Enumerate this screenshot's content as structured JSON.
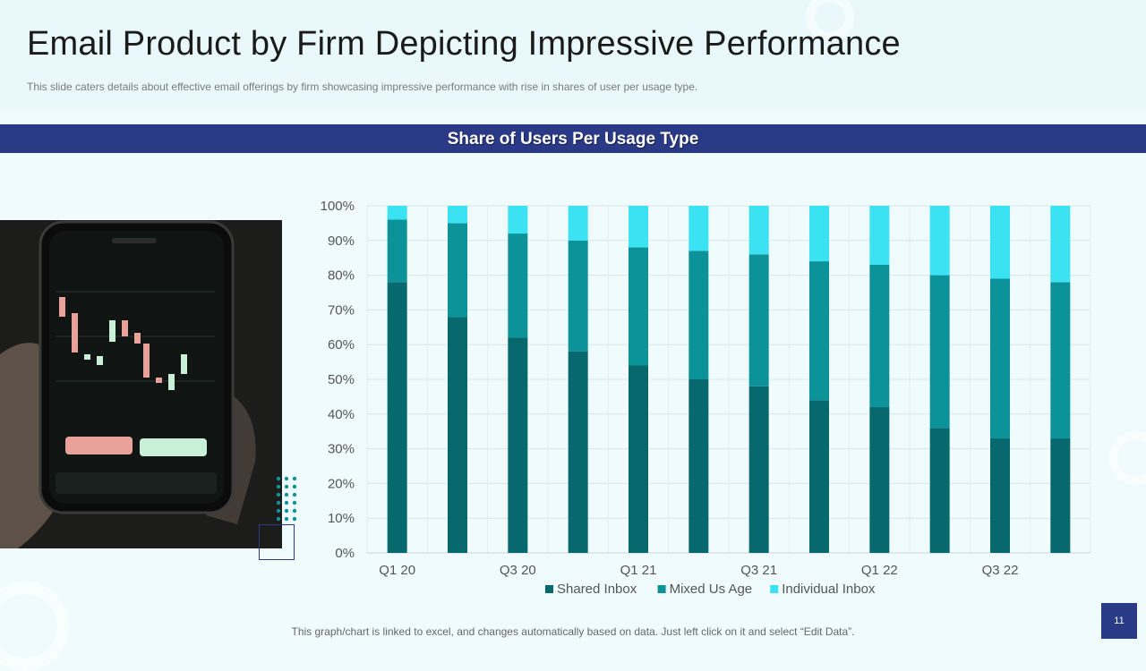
{
  "slide": {
    "title": "Email Product by Firm Depicting Impressive Performance",
    "subtitle": "This slide caters details about effective  email offerings  by firm showcasing impressive  performance  with rise in shares of user per usage type.",
    "section_heading": "Share of Users Per Usage Type",
    "footer_note": "This graph/chart is linked to excel, and changes automatically based on data. Just left click on it and select “Edit Data”.",
    "page_number": "11"
  },
  "colors": {
    "title_bar": "#2b3a86",
    "shared_inbox": "#07696e",
    "mixed_us_age": "#0c9399",
    "individual_inbox": "#3ae2f2"
  },
  "chart_data": {
    "type": "bar",
    "stacked": true,
    "title": "Share of Users Per Usage Type",
    "categories": [
      "Q1 20",
      "Q2 20",
      "Q3 20",
      "Q4 20",
      "Q1 21",
      "Q2 21",
      "Q3 21",
      "Q4 21",
      "Q1 22",
      "Q2 22",
      "Q3 22",
      "Q4 22"
    ],
    "shown_tick_labels": [
      "Q1 20",
      "Q3 20",
      "Q1 21",
      "Q3 21",
      "Q1 22",
      "Q3 22"
    ],
    "y_ticks": [
      "0%",
      "10%",
      "20%",
      "30%",
      "40%",
      "50%",
      "60%",
      "70%",
      "80%",
      "90%",
      "100%"
    ],
    "ylim": [
      0,
      100
    ],
    "grid": true,
    "legend_position": "bottom",
    "series": [
      {
        "name": "Shared Inbox",
        "values": [
          78,
          68,
          62,
          58,
          54,
          50,
          48,
          44,
          42,
          36,
          33,
          33
        ]
      },
      {
        "name": "Mixed Us Age",
        "values": [
          18,
          27,
          30,
          32,
          34,
          37,
          38,
          40,
          41,
          44,
          46,
          45
        ]
      },
      {
        "name": "Individual Inbox",
        "values": [
          4,
          5,
          8,
          10,
          12,
          13,
          14,
          16,
          17,
          20,
          21,
          22
        ]
      }
    ]
  }
}
